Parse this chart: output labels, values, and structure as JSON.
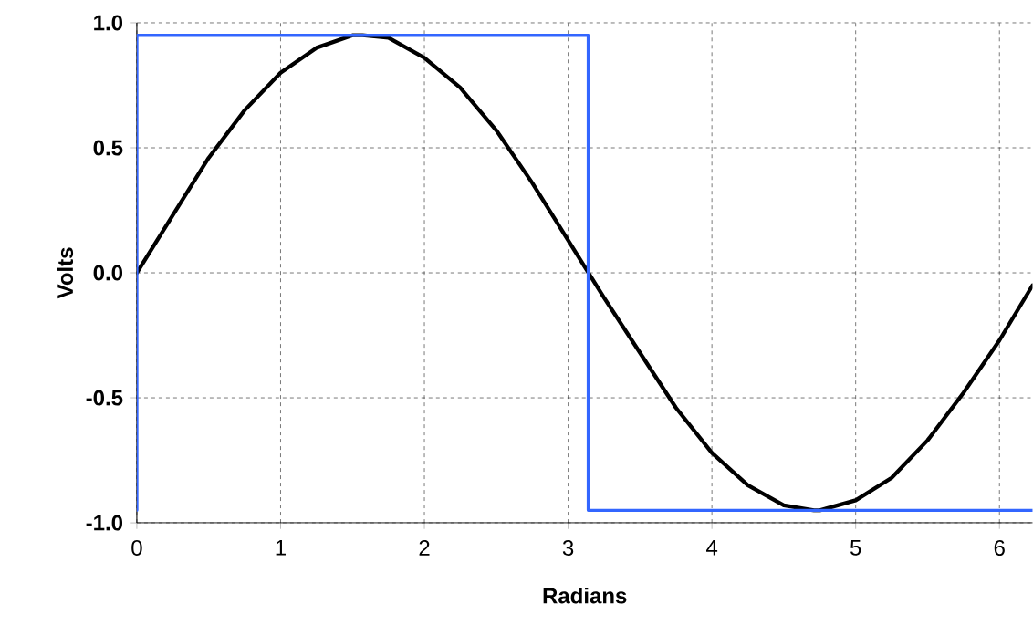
{
  "chart_data": {
    "type": "line",
    "xlabel": "Radians",
    "ylabel": "Volts",
    "xlim": [
      0,
      6.23
    ],
    "ylim": [
      -1.0,
      1.0
    ],
    "xticks": [
      0,
      1,
      2,
      3,
      4,
      5,
      6
    ],
    "yticks": [
      {
        "value": -1.0,
        "label": "-1.0"
      },
      {
        "value": -0.5,
        "label": "-0.5"
      },
      {
        "value": 0.0,
        "label": "0.0"
      },
      {
        "value": 0.5,
        "label": "0.5"
      },
      {
        "value": 1.0,
        "label": "1.0"
      }
    ],
    "grid": true,
    "marker": "none",
    "line_style": "solid",
    "series": [
      {
        "color": "#000000",
        "x": [
          0,
          0.25,
          0.5,
          0.75,
          1.0,
          1.25,
          1.5,
          1.57,
          1.75,
          2.0,
          2.25,
          2.5,
          2.75,
          3.0,
          3.25,
          3.5,
          3.75,
          4.0,
          4.25,
          4.5,
          4.71,
          4.75,
          5.0,
          5.25,
          5.5,
          5.75,
          6.0,
          6.23
        ],
        "values": [
          0,
          0.23,
          0.46,
          0.65,
          0.8,
          0.9,
          0.95,
          0.95,
          0.94,
          0.86,
          0.74,
          0.57,
          0.36,
          0.13,
          -0.1,
          -0.32,
          -0.54,
          -0.72,
          -0.85,
          -0.93,
          -0.95,
          -0.95,
          -0.91,
          -0.82,
          -0.67,
          -0.48,
          -0.27,
          -0.05
        ]
      },
      {
        "color": "#3366ff",
        "x": [
          0,
          0,
          3.14,
          3.14,
          6.23
        ],
        "values": [
          -0.95,
          0.95,
          0.95,
          -0.95,
          -0.95
        ]
      }
    ]
  }
}
